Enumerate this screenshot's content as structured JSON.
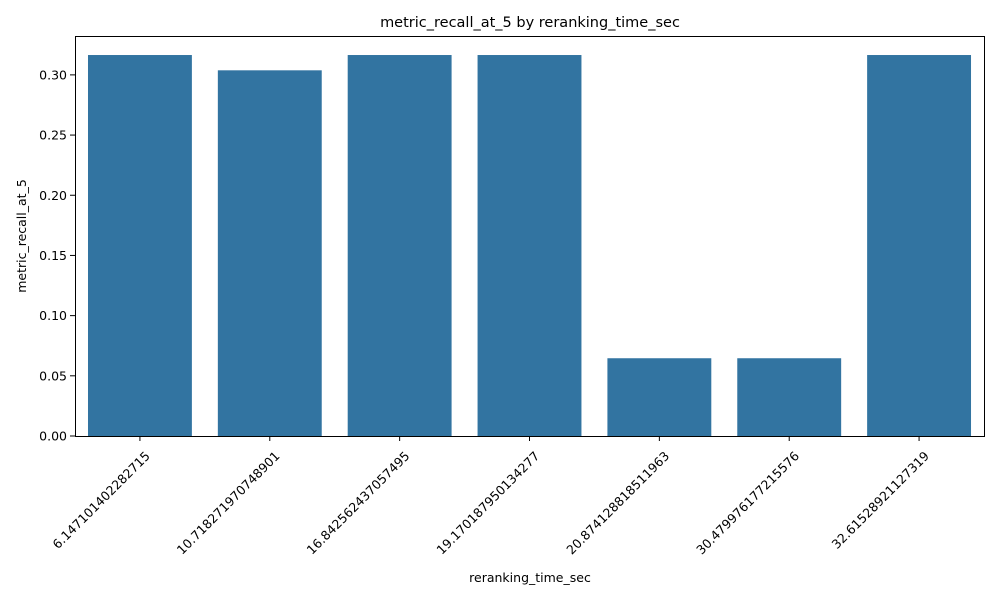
{
  "chart_data": {
    "type": "bar",
    "title": "metric_recall_at_5 by reranking_time_sec",
    "xlabel": "reranking_time_sec",
    "ylabel": "metric_recall_at_5",
    "categories": [
      "6.147101402282715",
      "10.718271970748901",
      "16.84256243705749​5",
      "19.170187950134277",
      "20.874128818511963",
      "30.479976177215576",
      "32.61528921127319"
    ],
    "values": [
      0.3165,
      0.3038,
      0.3165,
      0.3165,
      0.0646,
      0.0646,
      0.3165
    ],
    "ylim": [
      0,
      0.3323
    ],
    "yticks": [
      0.0,
      0.05,
      0.1,
      0.15,
      0.2,
      0.25,
      0.3
    ],
    "ytick_labels": [
      "0.00",
      "0.05",
      "0.10",
      "0.15",
      "0.20",
      "0.25",
      "0.30"
    ],
    "bar_color": "#3274a1",
    "grid": false,
    "legend": "none"
  }
}
